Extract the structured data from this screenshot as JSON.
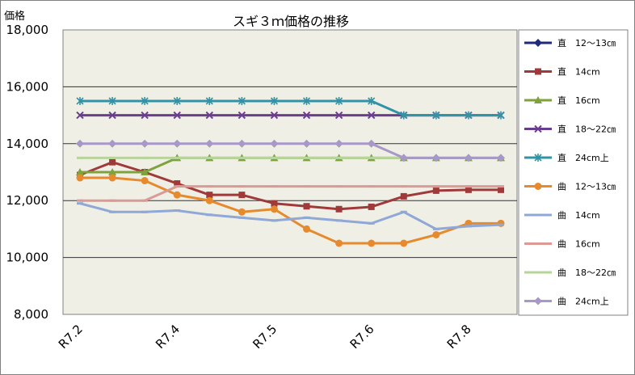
{
  "chart_data": {
    "type": "line",
    "title": "スギ３ｍ価格の推移",
    "ylabel": "価格",
    "xlabel": "",
    "ylim": [
      8000,
      18000
    ],
    "yticks": [
      8000,
      10000,
      12000,
      14000,
      16000,
      18000
    ],
    "ytick_labels": [
      "8,000",
      "10,000",
      "12,000",
      "14,000",
      "16,000",
      "18,000"
    ],
    "x": [
      "R7.2",
      "",
      "",
      "R7.4",
      "",
      "",
      "R7.5",
      "",
      "",
      "R7.6",
      "",
      "",
      "R7.8",
      ""
    ],
    "xtick_labels": [
      {
        "label": "R7.2",
        "index": 0
      },
      {
        "label": "R7.4",
        "index": 3
      },
      {
        "label": "R7.5",
        "index": 6
      },
      {
        "label": "R7.6",
        "index": 9
      },
      {
        "label": "R7.8",
        "index": 12
      }
    ],
    "grid": true,
    "legend_position": "right",
    "series": [
      {
        "name": "直　12～13㎝",
        "color": "#1F2A7A",
        "marker": "diamond",
        "values": [
          null,
          null,
          null,
          null,
          null,
          null,
          null,
          null,
          null,
          null,
          null,
          null,
          null,
          null
        ]
      },
      {
        "name": "直　14cm",
        "color": "#A0393A",
        "marker": "square",
        "values": [
          12900,
          13350,
          13000,
          12600,
          12200,
          12200,
          11900,
          11800,
          11700,
          11780,
          12150,
          12350,
          12380,
          12380
        ]
      },
      {
        "name": "直　16cm",
        "color": "#7EA23E",
        "marker": "triangle",
        "values": [
          13000,
          13000,
          13000,
          13500,
          13500,
          13500,
          13500,
          13500,
          13500,
          13500,
          13500,
          13500,
          13500,
          13500
        ]
      },
      {
        "name": "直　18～22㎝",
        "color": "#6A3D8F",
        "marker": "x",
        "values": [
          15000,
          15000,
          15000,
          15000,
          15000,
          15000,
          15000,
          15000,
          15000,
          15000,
          15000,
          15000,
          15000,
          15000
        ]
      },
      {
        "name": "直　24cm上",
        "color": "#3194A6",
        "marker": "star",
        "values": [
          15500,
          15500,
          15500,
          15500,
          15500,
          15500,
          15500,
          15500,
          15500,
          15500,
          15000,
          15000,
          15000,
          15000
        ]
      },
      {
        "name": "曲　12～13㎝",
        "color": "#E68A2E",
        "marker": "circle",
        "values": [
          12800,
          12800,
          12700,
          12200,
          12000,
          11600,
          11700,
          11000,
          10500,
          10500,
          10500,
          10800,
          11200,
          11200
        ]
      },
      {
        "name": "曲　14cm",
        "color": "#8FA8D6",
        "marker": "dash",
        "values": [
          11900,
          11600,
          11600,
          11650,
          11500,
          11400,
          11300,
          11400,
          11300,
          11200,
          11600,
          11000,
          11100,
          11150
        ]
      },
      {
        "name": "曲　16cm",
        "color": "#DB9A96",
        "marker": "dash",
        "values": [
          12000,
          12000,
          12000,
          12500,
          12500,
          12500,
          12500,
          12500,
          12500,
          12500,
          12500,
          12500,
          12500,
          12500
        ]
      },
      {
        "name": "曲　18～22㎝",
        "color": "#B8D49A",
        "marker": "dash",
        "values": [
          13500,
          13500,
          13500,
          13500,
          13500,
          13500,
          13500,
          13500,
          13500,
          13500,
          13500,
          13500,
          13500,
          13500
        ]
      },
      {
        "name": "曲　24cm上",
        "color": "#A898C8",
        "marker": "diamond",
        "values": [
          14000,
          14000,
          14000,
          14000,
          14000,
          14000,
          14000,
          14000,
          14000,
          14000,
          13500,
          13500,
          13500,
          13500
        ]
      }
    ]
  }
}
